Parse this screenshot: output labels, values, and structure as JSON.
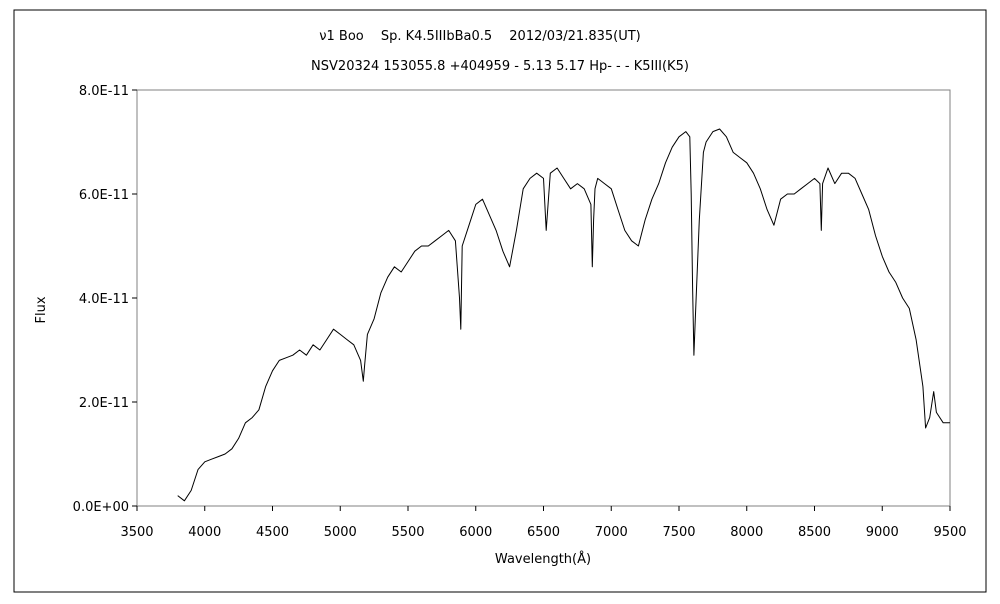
{
  "chart_data": {
    "type": "line",
    "title": "ν1 Boo　 Sp. K4.5IIIbBa0.5　 2012/03/21.835(UT)",
    "subtitle": "NSV20324 153055.8 +404959 - 5.13 5.17 Hp- - - K5III(K5)",
    "xlabel": "Wavelength(Å)",
    "ylabel": "Flux",
    "xlim": [
      3500,
      9500
    ],
    "ylim": [
      0,
      8e-11
    ],
    "x_ticks": [
      "3500",
      "4000",
      "4500",
      "5000",
      "5500",
      "6000",
      "6500",
      "7000",
      "7500",
      "8000",
      "8500",
      "9000",
      "9500"
    ],
    "y_ticks": [
      "0.0E+00",
      "2.0E-11",
      "4.0E-11",
      "6.0E-11",
      "8.0E-11"
    ],
    "grid": false,
    "legend": "none",
    "line_color": "#000000",
    "series": [
      {
        "x": [
          3800,
          3850,
          3900,
          3950,
          4000,
          4050,
          4100,
          4150,
          4200,
          4250,
          4300,
          4350,
          4400,
          4450,
          4500,
          4550,
          4600,
          4650,
          4700,
          4750,
          4800,
          4850,
          4900,
          4950,
          5000,
          5050,
          5100,
          5150,
          5170,
          5180,
          5200,
          5250,
          5300,
          5350,
          5400,
          5450,
          5500,
          5550,
          5600,
          5650,
          5700,
          5750,
          5800,
          5850,
          5880,
          5890,
          5895,
          5900,
          5950,
          6000,
          6050,
          6100,
          6150,
          6200,
          6250,
          6300,
          6350,
          6400,
          6450,
          6500,
          6520,
          6550,
          6600,
          6650,
          6700,
          6750,
          6800,
          6850,
          6860,
          6870,
          6880,
          6900,
          6950,
          7000,
          7050,
          7100,
          7150,
          7200,
          7250,
          7300,
          7350,
          7400,
          7450,
          7500,
          7550,
          7580,
          7590,
          7600,
          7610,
          7620,
          7650,
          7680,
          7700,
          7750,
          7800,
          7850,
          7900,
          7950,
          8000,
          8050,
          8100,
          8150,
          8200,
          8250,
          8300,
          8350,
          8400,
          8450,
          8500,
          8540,
          8550,
          8560,
          8600,
          8650,
          8700,
          8750,
          8800,
          8850,
          8900,
          8950,
          9000,
          9050,
          9100,
          9150,
          9200,
          9250,
          9300,
          9320,
          9350,
          9380,
          9400,
          9450,
          9500
        ],
        "y": [
          2e-12,
          1e-12,
          3e-12,
          7e-12,
          8.5e-12,
          9e-12,
          9.5e-12,
          1e-11,
          1.1e-11,
          1.3e-11,
          1.6e-11,
          1.7e-11,
          1.85e-11,
          2.3e-11,
          2.6e-11,
          2.8e-11,
          2.85e-11,
          2.9e-11,
          3e-11,
          2.9e-11,
          3.1e-11,
          3e-11,
          3.2e-11,
          3.4e-11,
          3.3e-11,
          3.2e-11,
          3.1e-11,
          2.8e-11,
          2.4e-11,
          2.7e-11,
          3.3e-11,
          3.6e-11,
          4.1e-11,
          4.4e-11,
          4.6e-11,
          4.5e-11,
          4.7e-11,
          4.9e-11,
          5e-11,
          5e-11,
          5.1e-11,
          5.2e-11,
          5.3e-11,
          5.1e-11,
          4e-11,
          3.4e-11,
          4.2e-11,
          5e-11,
          5.4e-11,
          5.8e-11,
          5.9e-11,
          5.6e-11,
          5.3e-11,
          4.9e-11,
          4.6e-11,
          5.3e-11,
          6.1e-11,
          6.3e-11,
          6.4e-11,
          6.3e-11,
          5.3e-11,
          6.4e-11,
          6.5e-11,
          6.3e-11,
          6.1e-11,
          6.2e-11,
          6.1e-11,
          5.8e-11,
          4.6e-11,
          5.5e-11,
          6.1e-11,
          6.3e-11,
          6.2e-11,
          6.1e-11,
          5.7e-11,
          5.3e-11,
          5.1e-11,
          5e-11,
          5.5e-11,
          5.9e-11,
          6.2e-11,
          6.6e-11,
          6.9e-11,
          7.1e-11,
          7.2e-11,
          7.1e-11,
          6e-11,
          4.2e-11,
          2.9e-11,
          3.6e-11,
          5.5e-11,
          6.8e-11,
          7e-11,
          7.2e-11,
          7.25e-11,
          7.1e-11,
          6.8e-11,
          6.7e-11,
          6.6e-11,
          6.4e-11,
          6.1e-11,
          5.7e-11,
          5.4e-11,
          5.9e-11,
          6e-11,
          6e-11,
          6.1e-11,
          6.2e-11,
          6.3e-11,
          6.2e-11,
          5.3e-11,
          6.2e-11,
          6.5e-11,
          6.2e-11,
          6.4e-11,
          6.4e-11,
          6.3e-11,
          6e-11,
          5.7e-11,
          5.2e-11,
          4.8e-11,
          4.5e-11,
          4.3e-11,
          4e-11,
          3.8e-11,
          3.2e-11,
          2.3e-11,
          1.5e-11,
          1.7e-11,
          2.2e-11,
          1.8e-11,
          1.6e-11,
          1.6e-11
        ]
      }
    ]
  }
}
